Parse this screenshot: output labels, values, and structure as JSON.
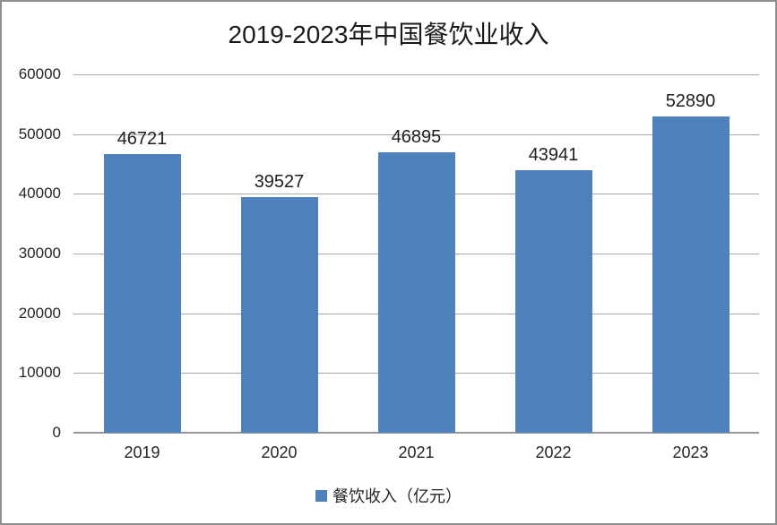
{
  "window": {
    "background": "#ffffff",
    "border_color": "#8f8f8f"
  },
  "chart_data": {
    "type": "bar",
    "title": "2019-2023年中国餐饮业收入",
    "categories": [
      "2019",
      "2020",
      "2021",
      "2022",
      "2023"
    ],
    "series": [
      {
        "name": "餐饮收入（亿元）",
        "values": [
          46721,
          39527,
          46895,
          43941,
          52890
        ]
      }
    ],
    "xlabel": "",
    "ylabel": "",
    "ylim": [
      0,
      60000
    ],
    "ytick_interval": 10000,
    "ytick_labels": [
      "0",
      "10000",
      "20000",
      "30000",
      "40000",
      "50000",
      "60000"
    ],
    "grid": "horizontal",
    "legend_position": "bottom",
    "data_labels": true,
    "colors": {
      "bar": "#4F81BD",
      "legend_swatch": "#4F81BD",
      "gridline": "#A6A6A6",
      "baseline": "#969696",
      "text": "#1f1f1f"
    }
  }
}
